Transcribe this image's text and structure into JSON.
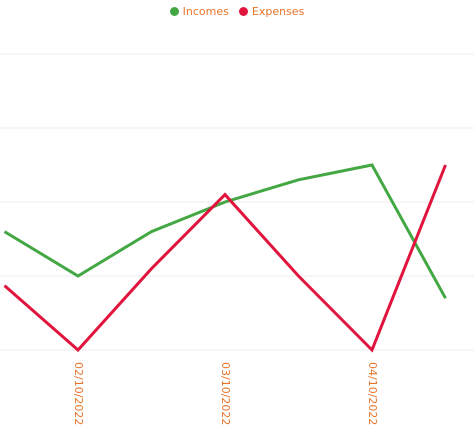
{
  "chart_data": {
    "type": "line",
    "title": "",
    "xlabel": "",
    "ylabel": "",
    "legend_position": "top-center",
    "grid": true,
    "x": [
      1.5,
      2,
      2.5,
      3,
      3.5,
      4,
      4.5
    ],
    "tick_labels": [
      "02/10/2022",
      "03/10/2022",
      "04/10/2022"
    ],
    "tick_positions": [
      2,
      3,
      4
    ],
    "y_range": [
      0,
      4
    ],
    "series": [
      {
        "name": "Incomes",
        "color": "#43a843",
        "values": [
          1.6,
          1.0,
          1.6,
          2.0,
          2.3,
          2.5,
          0.7
        ]
      },
      {
        "name": "Expenses",
        "color": "#e0143c",
        "values": [
          0.87,
          0.0,
          1.1,
          2.1,
          1.0,
          0.0,
          2.5
        ]
      }
    ]
  }
}
